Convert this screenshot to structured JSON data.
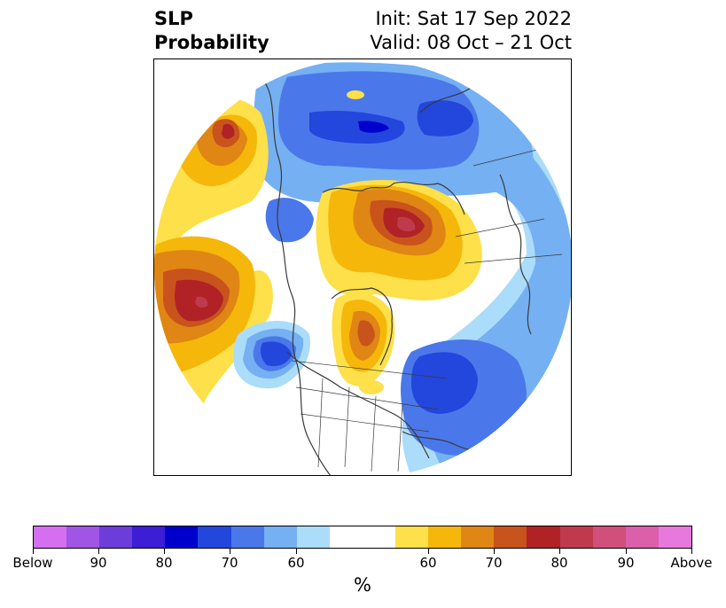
{
  "title": {
    "left_line1": "SLP",
    "left_line2": "Probability",
    "right_line1": "Init: Sat 17 Sep 2022",
    "right_line2": "Valid: 08 Oct – 21 Oct"
  },
  "colorbar": {
    "colors": [
      "#d56ff0",
      "#a155e4",
      "#6c3ddb",
      "#3c1ed6",
      "#0000cd",
      "#2346dc",
      "#4a78ea",
      "#75b0f2",
      "#abdcfa",
      "#ffffff",
      "#ffffff",
      "#fde04a",
      "#f5b70a",
      "#df8614",
      "#c8531c",
      "#b02225",
      "#c03a4e",
      "#d04f7b",
      "#db5fa9",
      "#e879dc"
    ],
    "labels": [
      "Below",
      "90",
      "80",
      "70",
      "60",
      "60",
      "70",
      "80",
      "90",
      "Above"
    ],
    "units": "%"
  },
  "map": {
    "projection": "north-polar-stereographic",
    "features": [
      {
        "name": "above-max",
        "color": "#b02225"
      },
      {
        "name": "below-max",
        "color": "#0000cd"
      }
    ]
  }
}
